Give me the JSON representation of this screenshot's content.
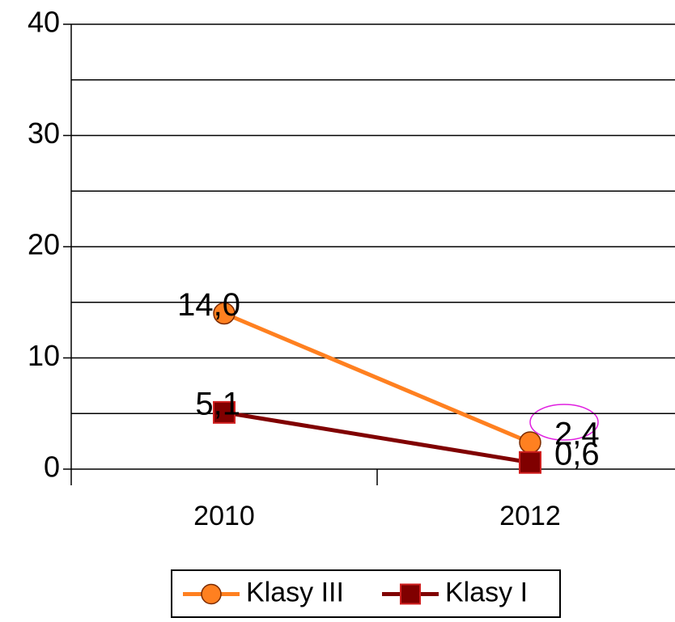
{
  "chart_data": {
    "type": "line",
    "categories": [
      "2010",
      "2012"
    ],
    "series": [
      {
        "name": "Klasy III",
        "color": "#ff8020",
        "marker": "circle",
        "values": [
          14.0,
          2.4
        ],
        "value_labels": [
          "14,0",
          "2,4"
        ]
      },
      {
        "name": "Klasy I",
        "color": "#800000",
        "marker": "square",
        "values": [
          5.1,
          0.6
        ],
        "value_labels": [
          "5,1",
          "0,6"
        ]
      }
    ],
    "ylim": [
      0,
      40
    ],
    "yticks": [
      0,
      10,
      20,
      30,
      40
    ],
    "ygrid": [
      0,
      5,
      10,
      15,
      20,
      25,
      30,
      35,
      40
    ],
    "grid": true,
    "legend": "bottom"
  }
}
